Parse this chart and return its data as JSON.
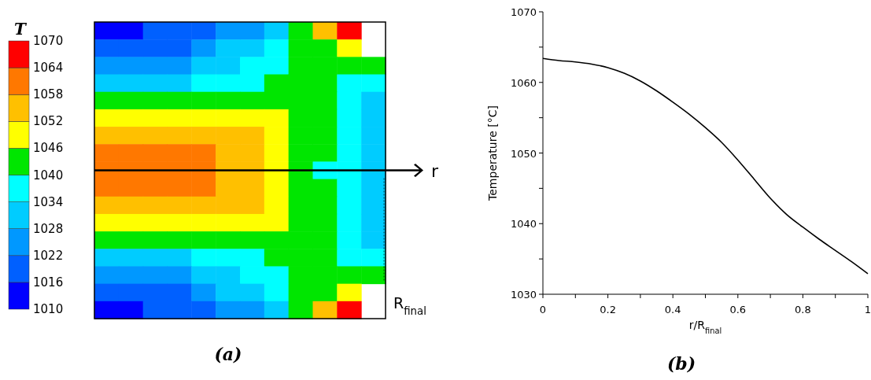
{
  "chart_data": [
    {
      "type": "heatmap",
      "title": "(a)",
      "clabel": "T",
      "annotations": [
        "r",
        "R$_{final}$"
      ],
      "categories": [
        null,
        null,
        null,
        null,
        null,
        null,
        null,
        null,
        null,
        null,
        null,
        null
      ],
      "y_categories": [
        null,
        null,
        null,
        null,
        null,
        null,
        null,
        null,
        null,
        null,
        null,
        null,
        null,
        null,
        null,
        null,
        null
      ],
      "clim": [
        1010,
        1070
      ],
      "cticks": [
        1010,
        1016,
        1022,
        1028,
        1034,
        1040,
        1046,
        1052,
        1058,
        1064,
        1070
      ],
      "colors": [
        "#0000ff",
        "#0060ff",
        "#0098ff",
        "#00ccff",
        "#00ffff",
        "#00e600",
        "#ffff00",
        "#ffc000",
        "#ff7800",
        "#ff0000"
      ],
      "cells": [
        [
          1013,
          1013,
          1019,
          1019,
          1019,
          1025,
          1025,
          1031,
          1043,
          1055,
          1067,
          null
        ],
        [
          1019,
          1019,
          1019,
          1019,
          1025,
          1031,
          1031,
          1037,
          1043,
          1043,
          1049,
          null
        ],
        [
          1025,
          1025,
          1025,
          1025,
          1031,
          1031,
          1037,
          1037,
          1043,
          1043,
          1043,
          1043
        ],
        [
          1031,
          1031,
          1031,
          1031,
          1037,
          1037,
          1037,
          1043,
          1043,
          1043,
          1037,
          1037
        ],
        [
          1043,
          1043,
          1043,
          1043,
          1043,
          1043,
          1043,
          1043,
          1043,
          1043,
          1037,
          1031
        ],
        [
          1049,
          1049,
          1049,
          1049,
          1049,
          1049,
          1049,
          1049,
          1043,
          1043,
          1037,
          1031
        ],
        [
          1055,
          1055,
          1055,
          1055,
          1055,
          1055,
          1055,
          1049,
          1043,
          1043,
          1037,
          1031
        ],
        [
          1061,
          1061,
          1061,
          1061,
          1061,
          1055,
          1055,
          1049,
          1043,
          1043,
          1037,
          1031
        ],
        [
          1061,
          1061,
          1061,
          1061,
          1061,
          1055,
          1055,
          1049,
          1043,
          1037,
          1037,
          1031
        ],
        [
          1061,
          1061,
          1061,
          1061,
          1061,
          1055,
          1055,
          1049,
          1043,
          1043,
          1037,
          1031
        ],
        [
          1055,
          1055,
          1055,
          1055,
          1055,
          1055,
          1055,
          1049,
          1043,
          1043,
          1037,
          1031
        ],
        [
          1049,
          1049,
          1049,
          1049,
          1049,
          1049,
          1049,
          1049,
          1043,
          1043,
          1037,
          1031
        ],
        [
          1043,
          1043,
          1043,
          1043,
          1043,
          1043,
          1043,
          1043,
          1043,
          1043,
          1037,
          1031
        ],
        [
          1031,
          1031,
          1031,
          1031,
          1037,
          1037,
          1037,
          1043,
          1043,
          1043,
          1037,
          1037
        ],
        [
          1025,
          1025,
          1025,
          1025,
          1031,
          1031,
          1037,
          1037,
          1043,
          1043,
          1043,
          1043
        ],
        [
          1019,
          1019,
          1019,
          1019,
          1025,
          1031,
          1031,
          1037,
          1043,
          1043,
          1049,
          null
        ],
        [
          1013,
          1013,
          1019,
          1019,
          1019,
          1025,
          1025,
          1031,
          1043,
          1055,
          1067,
          null
        ]
      ]
    },
    {
      "type": "line",
      "title": "(b)",
      "xlabel": "r/R$_{final}$",
      "ylabel": "Temperature [°C]",
      "x": [
        0,
        0.05,
        0.1,
        0.15,
        0.2,
        0.25,
        0.3,
        0.35,
        0.4,
        0.45,
        0.5,
        0.55,
        0.6,
        0.65,
        0.7,
        0.75,
        0.8,
        0.85,
        0.9,
        0.95,
        1
      ],
      "series": [
        {
          "color": "#000000",
          "values": [
            1063.4,
            1063.1,
            1062.9,
            1062.6,
            1062.1,
            1061.3,
            1060.2,
            1058.8,
            1057.2,
            1055.5,
            1053.6,
            1051.5,
            1049.0,
            1046.3,
            1043.6,
            1041.3,
            1039.5,
            1037.8,
            1036.2,
            1034.6,
            1032.9
          ]
        }
      ],
      "xlim": [
        0,
        1
      ],
      "ylim": [
        1030,
        1070
      ],
      "xticks": [
        0,
        {
          "value": 0.1,
          "label": null
        },
        0.2,
        {
          "value": 0.3,
          "label": null
        },
        0.4,
        {
          "value": 0.5,
          "label": null
        },
        0.6,
        {
          "value": 0.7,
          "label": null
        },
        0.8,
        {
          "value": 0.9,
          "label": null
        },
        1
      ],
      "yticks": [
        1030,
        {
          "value": 1035,
          "label": null
        },
        1040,
        {
          "value": 1045,
          "label": null
        },
        1050,
        {
          "value": 1055,
          "label": null
        },
        1060,
        {
          "value": 1065,
          "label": null
        },
        1070
      ],
      "grid": false
    }
  ]
}
